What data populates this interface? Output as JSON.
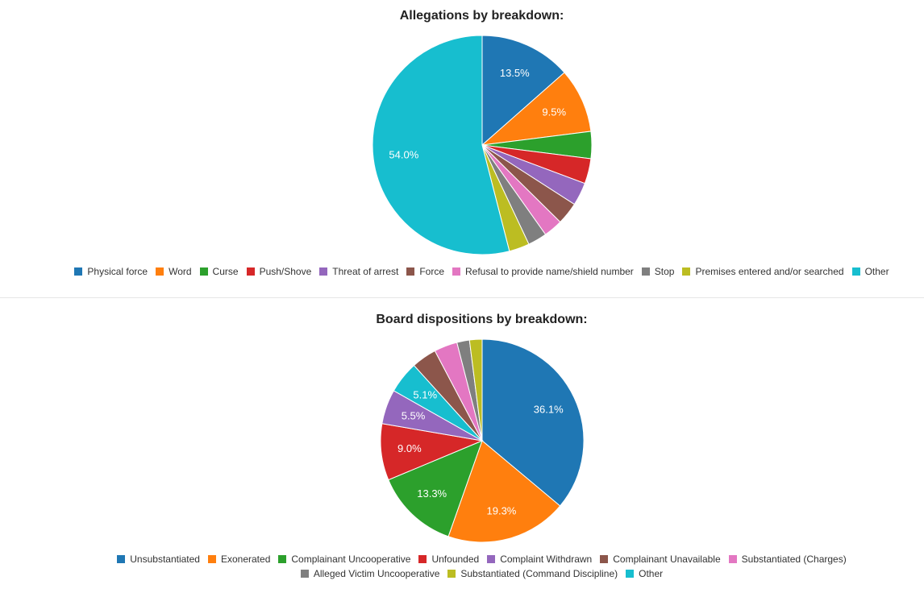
{
  "chart_data": [
    {
      "type": "pie",
      "title": "Allegations by breakdown:",
      "categories": [
        "Physical force",
        "Word",
        "Curse",
        "Push/Shove",
        "Threat of arrest",
        "Force",
        "Refusal to provide name/shield number",
        "Stop",
        "Premises entered and/or searched",
        "Other"
      ],
      "values": [
        13.5,
        9.5,
        4.0,
        3.7,
        3.4,
        3.3,
        2.8,
        2.8,
        3.0,
        54.0
      ],
      "colors": [
        "#1f77b4",
        "#ff7f0e",
        "#2ca02c",
        "#d62728",
        "#9467bd",
        "#8c564b",
        "#e377c2",
        "#7f7f7f",
        "#bcbd22",
        "#17becf"
      ],
      "labels": [
        "13.5%",
        "9.5%",
        "",
        "",
        "",
        "",
        "",
        "",
        "",
        "54.0%"
      ],
      "legend_position": "bottom"
    },
    {
      "type": "pie",
      "title": "Board dispositions by breakdown:",
      "categories": [
        "Unsubstantiated",
        "Exonerated",
        "Complainant Uncooperative",
        "Unfounded",
        "Complaint Withdrawn",
        "Complainant Unavailable",
        "Substantiated (Charges)",
        "Alleged Victim Uncooperative",
        "Substantiated (Command Discipline)",
        "Other"
      ],
      "values": [
        36.1,
        19.3,
        13.3,
        9.0,
        5.5,
        4.0,
        3.7,
        2.0,
        2.0,
        5.1
      ],
      "colors": [
        "#1f77b4",
        "#ff7f0e",
        "#2ca02c",
        "#d62728",
        "#9467bd",
        "#8c564b",
        "#e377c2",
        "#7f7f7f",
        "#bcbd22",
        "#17becf"
      ],
      "labels": [
        "36.1%",
        "19.3%",
        "13.3%",
        "9.0%",
        "5.5%",
        "",
        "",
        "",
        "",
        "5.1%"
      ],
      "order": [
        0,
        1,
        2,
        3,
        4,
        9,
        5,
        6,
        7,
        8
      ],
      "legend_rows": [
        [
          0,
          1,
          2,
          3,
          4,
          5,
          6
        ],
        [
          7,
          8,
          9
        ]
      ],
      "legend_position": "bottom"
    }
  ]
}
